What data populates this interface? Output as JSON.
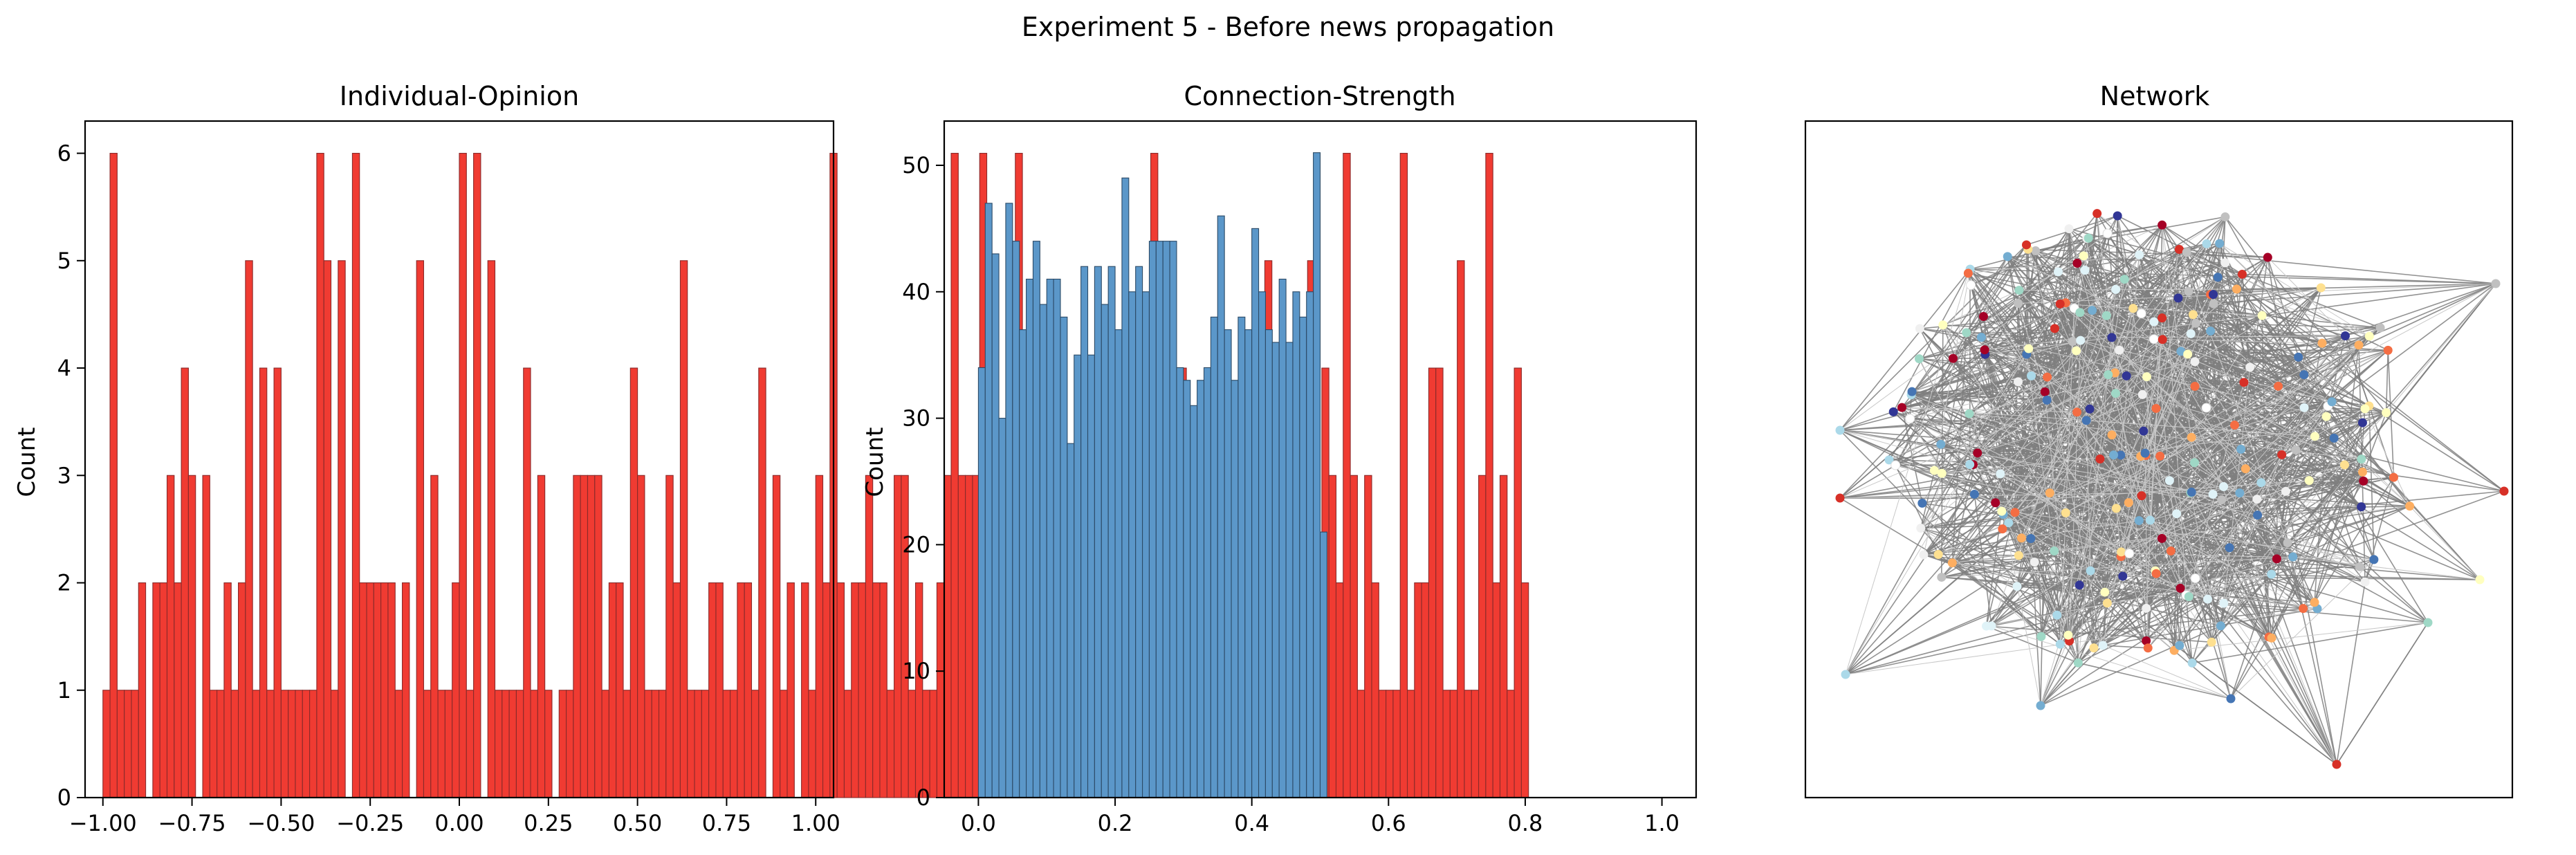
{
  "suptitle": "Experiment 5 - Before news propagation",
  "chart_data": [
    {
      "type": "bar",
      "title": "Individual-Opinion",
      "xlabel": "",
      "ylabel": "Count",
      "xlim": [
        -1.05,
        1.05
      ],
      "ylim": [
        0,
        6.3
      ],
      "xticks": [
        -1.0,
        -0.75,
        -0.5,
        -0.25,
        0.0,
        0.25,
        0.5,
        0.75,
        1.0
      ],
      "xtick_labels": [
        "−1.00",
        "−0.75",
        "−0.50",
        "−0.25",
        "0.00",
        "0.25",
        "0.50",
        "0.75",
        "1.00"
      ],
      "yticks": [
        0,
        1,
        2,
        3,
        4,
        5,
        6
      ],
      "ytick_labels": [
        "0",
        "1",
        "2",
        "3",
        "4",
        "5",
        "6"
      ],
      "bin_start": -1.0,
      "bin_width": 0.02,
      "color": "#f03b32",
      "edge_color": "#8a2a2a",
      "values": [
        1,
        6,
        1,
        1,
        1,
        2,
        0,
        2,
        2,
        3,
        2,
        4,
        3,
        0,
        3,
        1,
        1,
        2,
        1,
        2,
        5,
        1,
        4,
        1,
        4,
        1,
        1,
        1,
        1,
        1,
        6,
        5,
        1,
        5,
        0,
        6,
        2,
        2,
        2,
        2,
        2,
        1,
        2,
        0,
        5,
        1,
        3,
        1,
        1,
        2,
        6,
        1,
        6,
        0,
        5,
        1,
        1,
        1,
        1,
        4,
        1,
        3,
        1,
        0,
        1,
        1,
        3,
        3,
        3,
        3,
        1,
        2,
        2,
        1,
        4,
        3,
        1,
        1,
        1,
        3,
        2,
        5,
        1,
        1,
        1,
        2,
        2,
        1,
        1,
        2,
        2,
        1,
        4,
        0,
        3,
        1,
        2,
        0,
        2,
        1,
        3,
        2,
        6,
        2,
        1,
        2,
        2,
        3,
        2,
        2,
        1,
        3,
        3,
        1,
        2,
        1,
        1,
        2,
        3,
        6,
        3,
        3,
        3,
        6,
        2,
        1,
        1,
        2,
        6,
        2,
        3,
        2,
        4,
        1,
        1,
        1,
        3,
        2,
        1,
        0,
        3,
        1,
        1,
        2,
        4,
        1,
        1,
        6,
        2,
        1,
        2,
        4,
        1,
        1,
        2,
        3,
        1,
        2,
        2,
        3,
        1,
        1,
        1,
        5,
        2,
        2,
        3,
        3,
        3,
        5,
        2,
        4,
        3,
        2,
        6,
        3,
        1,
        3,
        2,
        1,
        1,
        1,
        6,
        1,
        2,
        2,
        4,
        4,
        1,
        1,
        5,
        1,
        1,
        3,
        6,
        2,
        3,
        1,
        4,
        2
      ]
    },
    {
      "type": "bar",
      "title": "Connection-Strength",
      "xlabel": "",
      "ylabel": "Count",
      "xlim": [
        -0.05,
        1.05
      ],
      "ylim": [
        0,
        53.5
      ],
      "xticks": [
        0.0,
        0.2,
        0.4,
        0.6,
        0.8,
        1.0
      ],
      "xtick_labels": [
        "0.0",
        "0.2",
        "0.4",
        "0.6",
        "0.8",
        "1.0"
      ],
      "yticks": [
        0,
        10,
        20,
        30,
        40,
        50
      ],
      "ytick_labels": [
        "0",
        "10",
        "20",
        "30",
        "40",
        "50"
      ],
      "bin_start": 0.0,
      "bin_width": 0.01,
      "color": "#5b97c9",
      "edge_color": "#2c4a66",
      "values": [
        34,
        47,
        43,
        30,
        47,
        44,
        37,
        41,
        44,
        39,
        41,
        41,
        38,
        28,
        35,
        42,
        35,
        42,
        39,
        42,
        37,
        49,
        40,
        42,
        40,
        44,
        44,
        44,
        44,
        34,
        33,
        31,
        33,
        34,
        38,
        46,
        37,
        33,
        38,
        37,
        45,
        40,
        37,
        36,
        41,
        36,
        40,
        38,
        40,
        51,
        21
      ]
    },
    {
      "type": "table",
      "title": "Network",
      "node_colors": [
        "#a50026",
        "#d73027",
        "#f46d43",
        "#fdae61",
        "#fee090",
        "#ffffbf",
        "#e0f3f8",
        "#abd9e9",
        "#74add1",
        "#4575b4",
        "#313695",
        "#ffffff",
        "#9fd8c6",
        "#f0f0f0",
        "#c0c0c0"
      ],
      "edge_color": "#7f7f7f",
      "faint_edge_color": "#c8c8c8"
    }
  ]
}
